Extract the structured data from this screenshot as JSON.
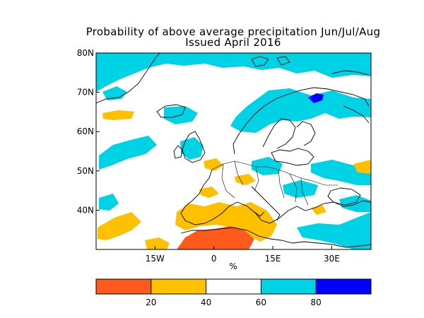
{
  "title": "Probability of above average precipitation Jun/Jul/Aug",
  "subtitle": "Issued April 2016",
  "axes": {
    "x_unit_label": "%",
    "lon_ticks": [
      {
        "label": "15W",
        "lon": -15
      },
      {
        "label": "0",
        "lon": 0
      },
      {
        "label": "15E",
        "lon": 15
      },
      {
        "label": "30E",
        "lon": 30
      }
    ],
    "lat_ticks": [
      {
        "label": "40N",
        "lat": 40
      },
      {
        "label": "50N",
        "lat": 50
      },
      {
        "label": "60N",
        "lat": 60
      },
      {
        "label": "70N",
        "lat": 70
      },
      {
        "label": "80N",
        "lat": 80
      }
    ],
    "lon_range": [
      -30,
      40
    ],
    "lat_range": [
      30,
      80
    ]
  },
  "colorbar": {
    "bins": [
      {
        "from": 0,
        "to": 20,
        "color": "#ff5a1e"
      },
      {
        "from": 20,
        "to": 40,
        "color": "#ffc000"
      },
      {
        "from": 40,
        "to": 60,
        "color": "#ffffff"
      },
      {
        "from": 60,
        "to": 80,
        "color": "#00d2e6"
      },
      {
        "from": 80,
        "to": 100,
        "color": "#0000ff"
      }
    ],
    "tick_labels": [
      "20",
      "40",
      "60",
      "80"
    ]
  },
  "colors": {
    "below_strong": "#ff5a1e",
    "below": "#ffc000",
    "above": "#00d2e6",
    "above_strong": "#0000ff",
    "coastline": "#000000"
  }
}
